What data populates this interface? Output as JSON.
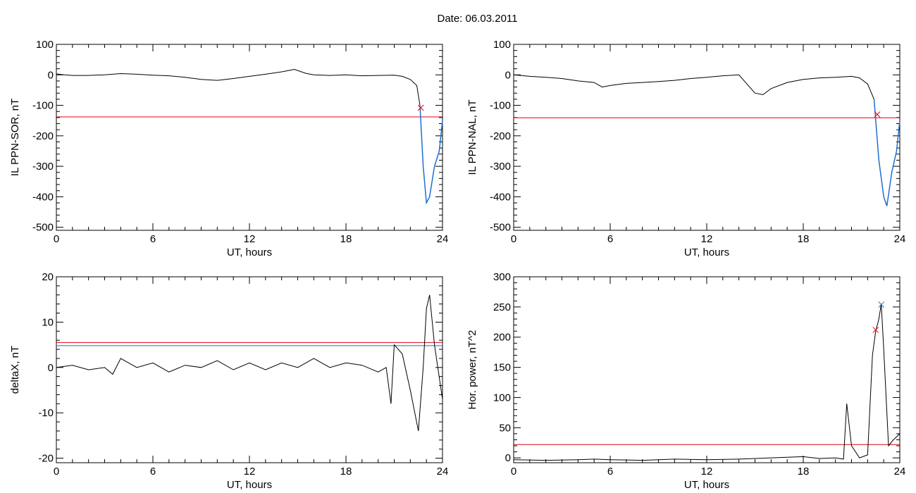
{
  "title": "Date:  06.03.2011",
  "colors": {
    "axis": "#000000",
    "data": "#000000",
    "threshold_red": "#e0000e",
    "threshold_blue": "#1f6fd0",
    "event": "#1f6fd0",
    "green_marker": "#00b000"
  },
  "chart_data": [
    {
      "type": "line",
      "xlabel": "UT, hours",
      "ylabel": "IL PPN-SOR, nT",
      "xlim": [
        0,
        24
      ],
      "ylim": [
        -510,
        100
      ],
      "xticks": [
        0,
        6,
        12,
        18,
        24
      ],
      "yticks": [
        -500,
        -400,
        -300,
        -200,
        -100,
        0,
        100
      ],
      "series": [
        {
          "values": [
            [
              0,
              3
            ],
            [
              0.5,
              0
            ],
            [
              1,
              -2
            ],
            [
              2,
              -2
            ],
            [
              3,
              0
            ],
            [
              4,
              4
            ],
            [
              5,
              2
            ],
            [
              6,
              -1
            ],
            [
              7,
              -3
            ],
            [
              8,
              -8
            ],
            [
              9,
              -15
            ],
            [
              10,
              -18
            ],
            [
              11,
              -12
            ],
            [
              12,
              -5
            ],
            [
              13,
              2
            ],
            [
              14,
              10
            ],
            [
              14.8,
              18
            ],
            [
              15.5,
              5
            ],
            [
              16,
              0
            ],
            [
              17,
              -2
            ],
            [
              18,
              0
            ],
            [
              19,
              -3
            ],
            [
              20,
              -2
            ],
            [
              21,
              -1
            ],
            [
              21.5,
              -5
            ],
            [
              22,
              -15
            ],
            [
              22.4,
              -35
            ],
            [
              22.6,
              -100
            ]
          ]
        },
        {
          "values": [
            [
              22.6,
              -100
            ],
            [
              22.8,
              -300
            ],
            [
              23,
              -420
            ],
            [
              23.2,
              -400
            ],
            [
              23.5,
              -300
            ],
            [
              23.8,
              -250
            ],
            [
              24,
              -150
            ]
          ]
        }
      ],
      "thresholds": [
        -138
      ],
      "markers": [
        {
          "x": 22.65,
          "y": -108,
          "symbol": "x"
        }
      ]
    },
    {
      "type": "line",
      "xlabel": "UT, hours",
      "ylabel": "IL PPN-NAL, nT",
      "xlim": [
        0,
        24
      ],
      "ylim": [
        -510,
        100
      ],
      "xticks": [
        0,
        6,
        12,
        18,
        24
      ],
      "yticks": [
        -500,
        -400,
        -300,
        -200,
        -100,
        0,
        100
      ],
      "series": [
        {
          "values": [
            [
              0,
              0
            ],
            [
              1,
              -5
            ],
            [
              2,
              -8
            ],
            [
              3,
              -12
            ],
            [
              4,
              -20
            ],
            [
              5,
              -25
            ],
            [
              5.5,
              -40
            ],
            [
              6,
              -35
            ],
            [
              7,
              -28
            ],
            [
              8,
              -25
            ],
            [
              9,
              -22
            ],
            [
              10,
              -18
            ],
            [
              11,
              -12
            ],
            [
              12,
              -8
            ],
            [
              13,
              -3
            ],
            [
              14,
              0
            ],
            [
              14.5,
              -30
            ],
            [
              15,
              -60
            ],
            [
              15.5,
              -65
            ],
            [
              16,
              -45
            ],
            [
              17,
              -25
            ],
            [
              18,
              -15
            ],
            [
              19,
              -10
            ],
            [
              20,
              -8
            ],
            [
              21,
              -5
            ],
            [
              21.5,
              -10
            ],
            [
              22,
              -30
            ],
            [
              22.4,
              -80
            ]
          ]
        },
        {
          "values": [
            [
              22.4,
              -80
            ],
            [
              22.7,
              -280
            ],
            [
              23,
              -400
            ],
            [
              23.2,
              -430
            ],
            [
              23.5,
              -320
            ],
            [
              23.8,
              -250
            ],
            [
              24,
              -150
            ]
          ]
        }
      ],
      "thresholds": [
        -141
      ],
      "markers": [
        {
          "x": 22.6,
          "y": -130,
          "symbol": "x"
        }
      ]
    },
    {
      "type": "line",
      "xlabel": "UT, hours",
      "ylabel": "deltaX, nT",
      "xlim": [
        0,
        24
      ],
      "ylim": [
        -21,
        20
      ],
      "xticks": [
        0,
        6,
        12,
        18,
        24
      ],
      "yticks": [
        -20,
        -10,
        0,
        10,
        20
      ],
      "series": [
        {
          "values": [
            [
              0,
              0
            ],
            [
              1,
              0.5
            ],
            [
              2,
              -0.5
            ],
            [
              3,
              0
            ],
            [
              3.5,
              -1.5
            ],
            [
              4,
              2
            ],
            [
              5,
              0
            ],
            [
              6,
              1
            ],
            [
              7,
              -1
            ],
            [
              8,
              0.5
            ],
            [
              9,
              0
            ],
            [
              10,
              1.5
            ],
            [
              11,
              -0.5
            ],
            [
              12,
              1
            ],
            [
              13,
              -0.5
            ],
            [
              14,
              1
            ],
            [
              15,
              0
            ],
            [
              16,
              2
            ],
            [
              17,
              0
            ],
            [
              18,
              1
            ],
            [
              19,
              0.5
            ],
            [
              20,
              -1
            ],
            [
              20.5,
              0
            ],
            [
              20.8,
              -8
            ],
            [
              21,
              5
            ],
            [
              21.5,
              3
            ],
            [
              22,
              -5
            ],
            [
              22.5,
              -14
            ],
            [
              22.8,
              0
            ],
            [
              23,
              13
            ],
            [
              23.2,
              16
            ],
            [
              23.5,
              5
            ],
            [
              24,
              -7
            ]
          ]
        }
      ],
      "thresholds": [
        5.5,
        4.8
      ],
      "markers": []
    },
    {
      "type": "line",
      "xlabel": "UT, hours",
      "ylabel": "Hor. power, nT^2",
      "xlim": [
        0,
        24
      ],
      "ylim": [
        -8,
        300
      ],
      "xticks": [
        0,
        6,
        12,
        18,
        24
      ],
      "yticks": [
        0,
        50,
        100,
        150,
        200,
        250,
        300
      ],
      "series": [
        {
          "values": [
            [
              0,
              -3
            ],
            [
              2,
              -4
            ],
            [
              4,
              -3
            ],
            [
              5,
              -2
            ],
            [
              6,
              -3
            ],
            [
              8,
              -4
            ],
            [
              10,
              -2
            ],
            [
              12,
              -3
            ],
            [
              14,
              -2
            ],
            [
              16,
              0
            ],
            [
              18,
              2
            ],
            [
              19,
              -1
            ],
            [
              20,
              0
            ],
            [
              20.5,
              -2
            ],
            [
              20.7,
              90
            ],
            [
              21,
              20
            ],
            [
              21.5,
              0
            ],
            [
              22,
              5
            ],
            [
              22.3,
              170
            ],
            [
              22.5,
              210
            ],
            [
              22.7,
              230
            ],
            [
              22.85,
              255
            ],
            [
              23,
              180
            ],
            [
              23.3,
              20
            ],
            [
              23.6,
              30
            ],
            [
              24,
              40
            ]
          ]
        }
      ],
      "thresholds": [
        22
      ],
      "markers": [
        {
          "x": 22.5,
          "y": 212,
          "symbol": "x"
        },
        {
          "x": 22.85,
          "y": 254,
          "symbol": "x"
        }
      ]
    }
  ]
}
